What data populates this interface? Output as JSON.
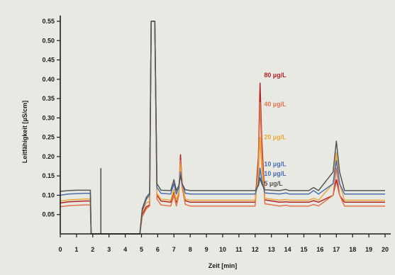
{
  "chart_data": {
    "type": "line",
    "title": "",
    "xlabel": "Zeit [min]",
    "ylabel": "Leitfähigkeit [µS/cm]",
    "xlim": [
      0,
      20
    ],
    "ylim": [
      0,
      0.55
    ],
    "xticks": [
      "0",
      "1",
      "2",
      "3",
      "4",
      "5",
      "6",
      "7",
      "8",
      "9",
      "10",
      "11",
      "12",
      "13",
      "14",
      "15",
      "16",
      "17",
      "18",
      "19",
      "20"
    ],
    "yticks": [
      "0.05",
      "0.10",
      "0.15",
      "0.20",
      "0.25",
      "0.30",
      "0.35",
      "0.40",
      "0.45",
      "0.50",
      "0.55"
    ],
    "grid": false,
    "legend": "inline labels at peak near 12.3 min",
    "background_color": "#e9e9e4",
    "series": [
      {
        "name": "80 µg/L",
        "color": "#b22424",
        "points": [
          [
            0,
            0.08
          ],
          [
            0.5,
            0.083
          ],
          [
            1.0,
            0.084
          ],
          [
            1.5,
            0.085
          ],
          [
            1.85,
            0.085
          ],
          [
            1.9,
            0.0
          ],
          [
            4.9,
            0.0
          ],
          [
            5.05,
            0.05
          ],
          [
            5.3,
            0.07
          ],
          [
            5.5,
            0.075
          ],
          [
            5.6,
            0.55
          ],
          [
            5.75,
            0.55
          ],
          [
            5.82,
            0.55
          ],
          [
            5.95,
            0.1
          ],
          [
            6.2,
            0.085
          ],
          [
            6.8,
            0.082
          ],
          [
            7.0,
            0.11
          ],
          [
            7.15,
            0.082
          ],
          [
            7.3,
            0.105
          ],
          [
            7.4,
            0.205
          ],
          [
            7.5,
            0.13
          ],
          [
            7.7,
            0.086
          ],
          [
            8.0,
            0.082
          ],
          [
            10.0,
            0.082
          ],
          [
            12.0,
            0.082
          ],
          [
            12.2,
            0.2
          ],
          [
            12.3,
            0.39
          ],
          [
            12.4,
            0.25
          ],
          [
            12.6,
            0.088
          ],
          [
            13.5,
            0.082
          ],
          [
            13.9,
            0.083
          ],
          [
            14.1,
            0.082
          ],
          [
            15.3,
            0.082
          ],
          [
            15.6,
            0.086
          ],
          [
            15.9,
            0.082
          ],
          [
            16.8,
            0.1
          ],
          [
            17.0,
            0.14
          ],
          [
            17.2,
            0.1
          ],
          [
            17.5,
            0.082
          ],
          [
            20,
            0.082
          ]
        ]
      },
      {
        "name": "40 µg/L",
        "color": "#e2744a",
        "points": [
          [
            0,
            0.07
          ],
          [
            0.5,
            0.073
          ],
          [
            1.0,
            0.074
          ],
          [
            1.5,
            0.075
          ],
          [
            1.85,
            0.075
          ],
          [
            1.9,
            0.0
          ],
          [
            4.9,
            0.0
          ],
          [
            5.05,
            0.045
          ],
          [
            5.3,
            0.065
          ],
          [
            5.5,
            0.072
          ],
          [
            5.6,
            0.55
          ],
          [
            5.75,
            0.55
          ],
          [
            5.82,
            0.55
          ],
          [
            5.95,
            0.09
          ],
          [
            6.2,
            0.075
          ],
          [
            6.8,
            0.072
          ],
          [
            7.0,
            0.1
          ],
          [
            7.15,
            0.072
          ],
          [
            7.3,
            0.1
          ],
          [
            7.4,
            0.19
          ],
          [
            7.5,
            0.12
          ],
          [
            7.7,
            0.076
          ],
          [
            8.0,
            0.072
          ],
          [
            10.0,
            0.072
          ],
          [
            12.0,
            0.072
          ],
          [
            12.2,
            0.18
          ],
          [
            12.3,
            0.34
          ],
          [
            12.4,
            0.22
          ],
          [
            12.6,
            0.078
          ],
          [
            13.5,
            0.072
          ],
          [
            13.9,
            0.074
          ],
          [
            14.1,
            0.072
          ],
          [
            15.3,
            0.072
          ],
          [
            15.6,
            0.076
          ],
          [
            15.9,
            0.072
          ],
          [
            16.8,
            0.1
          ],
          [
            17.0,
            0.17
          ],
          [
            17.2,
            0.1
          ],
          [
            17.5,
            0.072
          ],
          [
            20,
            0.072
          ]
        ]
      },
      {
        "name": "20 µg/L",
        "color": "#e8a93a",
        "points": [
          [
            0,
            0.085
          ],
          [
            0.5,
            0.088
          ],
          [
            1.0,
            0.089
          ],
          [
            1.5,
            0.09
          ],
          [
            1.85,
            0.09
          ],
          [
            1.9,
            0.0
          ],
          [
            4.9,
            0.0
          ],
          [
            5.05,
            0.055
          ],
          [
            5.3,
            0.08
          ],
          [
            5.5,
            0.085
          ],
          [
            5.6,
            0.55
          ],
          [
            5.75,
            0.55
          ],
          [
            5.82,
            0.55
          ],
          [
            5.95,
            0.105
          ],
          [
            6.2,
            0.09
          ],
          [
            6.8,
            0.087
          ],
          [
            7.0,
            0.115
          ],
          [
            7.15,
            0.087
          ],
          [
            7.3,
            0.11
          ],
          [
            7.4,
            0.18
          ],
          [
            7.5,
            0.13
          ],
          [
            7.7,
            0.09
          ],
          [
            8.0,
            0.087
          ],
          [
            10.0,
            0.087
          ],
          [
            12.0,
            0.087
          ],
          [
            12.2,
            0.15
          ],
          [
            12.3,
            0.25
          ],
          [
            12.4,
            0.17
          ],
          [
            12.6,
            0.092
          ],
          [
            13.5,
            0.087
          ],
          [
            13.9,
            0.089
          ],
          [
            14.1,
            0.087
          ],
          [
            15.3,
            0.087
          ],
          [
            15.6,
            0.092
          ],
          [
            15.9,
            0.087
          ],
          [
            16.8,
            0.13
          ],
          [
            17.0,
            0.21
          ],
          [
            17.2,
            0.13
          ],
          [
            17.5,
            0.087
          ],
          [
            20,
            0.087
          ]
        ]
      },
      {
        "name": "10 µg/L",
        "color": "#4a6fb0",
        "points": [
          [
            0,
            0.1
          ],
          [
            0.5,
            0.103
          ],
          [
            1.0,
            0.104
          ],
          [
            1.5,
            0.105
          ],
          [
            1.85,
            0.105
          ],
          [
            1.9,
            0.0
          ],
          [
            4.9,
            0.0
          ],
          [
            5.05,
            0.06
          ],
          [
            5.3,
            0.09
          ],
          [
            5.5,
            0.1
          ],
          [
            5.6,
            0.55
          ],
          [
            5.75,
            0.55
          ],
          [
            5.82,
            0.55
          ],
          [
            5.95,
            0.12
          ],
          [
            6.2,
            0.105
          ],
          [
            6.8,
            0.103
          ],
          [
            7.0,
            0.13
          ],
          [
            7.15,
            0.103
          ],
          [
            7.3,
            0.12
          ],
          [
            7.4,
            0.16
          ],
          [
            7.5,
            0.13
          ],
          [
            7.7,
            0.105
          ],
          [
            8.0,
            0.103
          ],
          [
            10.0,
            0.103
          ],
          [
            12.0,
            0.103
          ],
          [
            12.2,
            0.13
          ],
          [
            12.3,
            0.17
          ],
          [
            12.4,
            0.14
          ],
          [
            12.6,
            0.106
          ],
          [
            13.5,
            0.103
          ],
          [
            13.9,
            0.106
          ],
          [
            14.1,
            0.103
          ],
          [
            15.3,
            0.103
          ],
          [
            15.6,
            0.112
          ],
          [
            15.9,
            0.103
          ],
          [
            16.8,
            0.13
          ],
          [
            17.0,
            0.19
          ],
          [
            17.2,
            0.13
          ],
          [
            17.5,
            0.103
          ],
          [
            20,
            0.103
          ]
        ]
      },
      {
        "name": "5 µg/L",
        "color": "#555555",
        "points": [
          [
            0,
            0.11
          ],
          [
            0.5,
            0.112
          ],
          [
            1.0,
            0.113
          ],
          [
            1.5,
            0.113
          ],
          [
            1.85,
            0.113
          ],
          [
            1.9,
            0.0
          ],
          [
            4.9,
            0.0
          ],
          [
            5.05,
            0.065
          ],
          [
            5.3,
            0.095
          ],
          [
            5.5,
            0.105
          ],
          [
            5.6,
            0.55
          ],
          [
            5.75,
            0.55
          ],
          [
            5.82,
            0.55
          ],
          [
            5.95,
            0.13
          ],
          [
            6.2,
            0.113
          ],
          [
            6.8,
            0.112
          ],
          [
            7.0,
            0.14
          ],
          [
            7.15,
            0.112
          ],
          [
            7.3,
            0.125
          ],
          [
            7.4,
            0.15
          ],
          [
            7.5,
            0.13
          ],
          [
            7.7,
            0.114
          ],
          [
            8.0,
            0.112
          ],
          [
            10.0,
            0.112
          ],
          [
            12.0,
            0.112
          ],
          [
            12.2,
            0.125
          ],
          [
            12.3,
            0.145
          ],
          [
            12.4,
            0.13
          ],
          [
            12.6,
            0.114
          ],
          [
            13.5,
            0.112
          ],
          [
            13.9,
            0.115
          ],
          [
            14.1,
            0.112
          ],
          [
            15.3,
            0.112
          ],
          [
            15.6,
            0.12
          ],
          [
            15.9,
            0.112
          ],
          [
            16.8,
            0.16
          ],
          [
            17.0,
            0.24
          ],
          [
            17.2,
            0.16
          ],
          [
            17.5,
            0.112
          ],
          [
            20,
            0.112
          ]
        ]
      }
    ],
    "annotations": [
      {
        "type": "vline",
        "x": 2.5,
        "y_top": 0.17,
        "color": "#555555"
      }
    ],
    "series_labels": [
      {
        "series": 0,
        "text": "80 µg/L",
        "x": 12.55,
        "y": 0.405
      },
      {
        "series": 1,
        "text": "40 µg/L",
        "x": 12.55,
        "y": 0.33
      },
      {
        "series": 2,
        "text": "20 µg/L",
        "x": 12.55,
        "y": 0.245
      },
      {
        "series": 3,
        "text": "10 µg/L",
        "x": 12.55,
        "y": 0.175
      },
      {
        "series": 3,
        "text": "10 µg/L",
        "x": 12.55,
        "y": 0.15
      },
      {
        "series": 4,
        "text": "5 µg/L",
        "x": 12.55,
        "y": 0.125
      }
    ]
  }
}
